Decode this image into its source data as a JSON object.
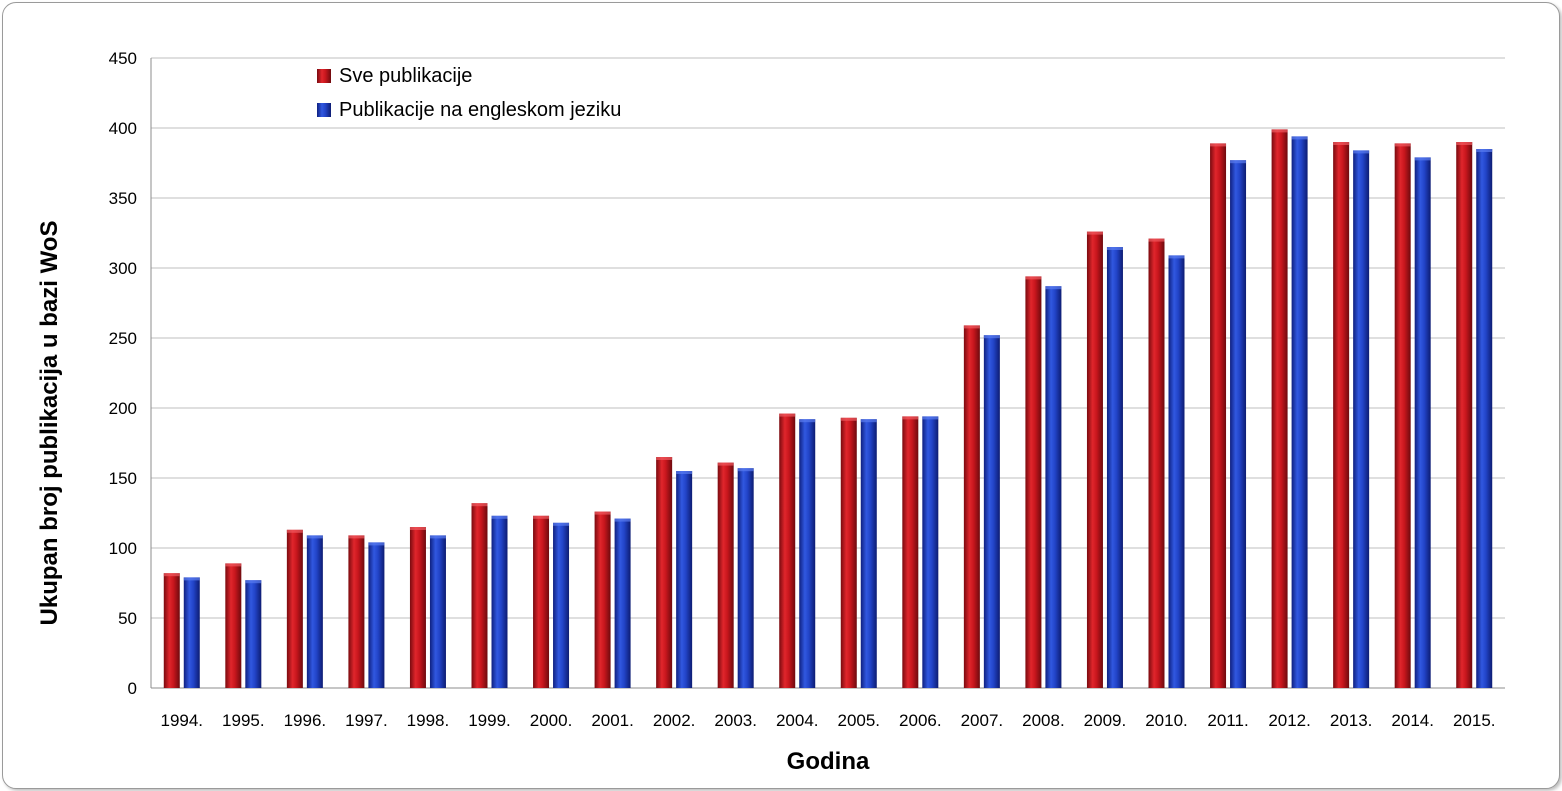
{
  "chart_data": {
    "type": "bar",
    "title": "",
    "xlabel": "Godina",
    "ylabel": "Ukupan broj publikacija u bazi WoS",
    "ylim": [
      0,
      450
    ],
    "yticks": [
      0,
      50,
      100,
      150,
      200,
      250,
      300,
      350,
      400,
      450
    ],
    "grid": true,
    "legend_position": "top-left",
    "categories": [
      "1994.",
      "1995.",
      "1996.",
      "1997.",
      "1998.",
      "1999.",
      "2000.",
      "2001.",
      "2002.",
      "2003.",
      "2004.",
      "2005.",
      "2006.",
      "2007.",
      "2008.",
      "2009.",
      "2010.",
      "2011.",
      "2012.",
      "2013.",
      "2014.",
      "2015."
    ],
    "series": [
      {
        "name": "Sve publikacije",
        "color": "#c0141c",
        "values": [
          82,
          89,
          113,
          109,
          115,
          132,
          123,
          126,
          165,
          161,
          196,
          193,
          194,
          259,
          294,
          326,
          321,
          389,
          399,
          390,
          389,
          390
        ]
      },
      {
        "name": "Publikacije na engleskom jeziku",
        "color": "#1f3fbf",
        "values": [
          79,
          77,
          109,
          104,
          109,
          123,
          118,
          121,
          155,
          157,
          192,
          192,
          194,
          252,
          287,
          315,
          309,
          377,
          394,
          384,
          379,
          385
        ]
      }
    ]
  }
}
